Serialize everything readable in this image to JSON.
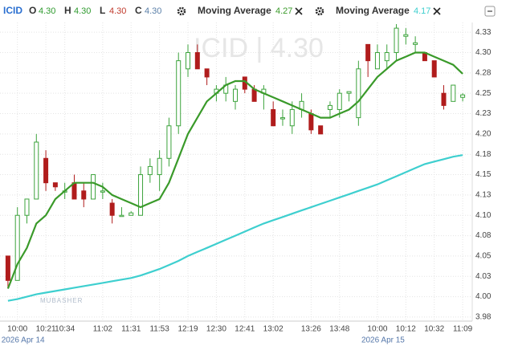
{
  "chart_data": {
    "type": "candlestick",
    "symbol": "ICID",
    "fields": [
      {
        "label": "O",
        "value": "4.30",
        "color": "#2e9a2e"
      },
      {
        "label": "H",
        "value": "4.30",
        "color": "#2e9a2e"
      },
      {
        "label": "L",
        "value": "4.30",
        "color": "#c0392b"
      },
      {
        "label": "C",
        "value": "4.30",
        "color": "#5a7fa8"
      }
    ],
    "watermark": "ICID  |  4.30",
    "logo": "MUBASHER",
    "categories": [
      null,
      "10:00",
      null,
      null,
      "10:21",
      null,
      "10:34",
      null,
      null,
      null,
      "11:02",
      null,
      null,
      "11:31",
      null,
      null,
      "11:53",
      null,
      null,
      "12:19",
      null,
      null,
      "12:30",
      null,
      null,
      "12:41",
      null,
      null,
      "13:02",
      null,
      null,
      null,
      "13:26",
      null,
      null,
      "13:48",
      null,
      null,
      null,
      "10:00",
      null,
      null,
      "10:12",
      null,
      null,
      "10:32",
      null,
      null,
      "11:09"
    ],
    "category_groups": [
      null,
      "2026 Apr 14",
      null,
      null,
      null,
      null,
      null,
      null,
      null,
      null,
      null,
      null,
      null,
      null,
      null,
      null,
      null,
      null,
      null,
      null,
      null,
      null,
      null,
      null,
      null,
      null,
      null,
      null,
      null,
      null,
      null,
      null,
      null,
      null,
      null,
      null,
      null,
      null,
      null,
      "2026 Apr 15",
      null,
      null,
      null,
      null,
      null,
      null,
      null,
      null,
      null
    ],
    "open": [
      4.05,
      4.02,
      4.1,
      4.12,
      4.17,
      4.14,
      4.13,
      4.14,
      4.13,
      4.12,
      4.13,
      4.115,
      4.1,
      4.1,
      4.1,
      4.15,
      4.15,
      4.17,
      4.21,
      4.28,
      4.3,
      4.28,
      4.25,
      4.25,
      4.24,
      4.27,
      4.255,
      4.25,
      4.23,
      4.22,
      4.21,
      4.23,
      4.225,
      4.21,
      4.23,
      4.23,
      4.25,
      4.22,
      4.31,
      4.28,
      4.29,
      4.3,
      4.32,
      4.31,
      4.3,
      4.29,
      4.25,
      4.24,
      4.245
    ],
    "high": [
      4.05,
      4.11,
      4.12,
      4.2,
      4.18,
      4.14,
      4.14,
      4.15,
      4.14,
      4.15,
      4.14,
      4.12,
      4.11,
      4.105,
      4.16,
      4.17,
      4.18,
      4.22,
      4.3,
      4.31,
      4.31,
      4.28,
      4.26,
      4.27,
      4.26,
      4.27,
      4.26,
      4.26,
      4.24,
      4.23,
      4.24,
      4.25,
      4.23,
      4.21,
      4.24,
      4.255,
      4.25,
      4.29,
      4.31,
      4.31,
      4.31,
      4.335,
      4.33,
      4.32,
      4.3,
      4.29,
      4.26,
      4.26,
      4.25
    ],
    "low": [
      4.01,
      4.02,
      4.09,
      4.12,
      4.13,
      4.13,
      4.12,
      4.12,
      4.11,
      4.12,
      4.12,
      4.09,
      4.1,
      4.1,
      4.1,
      4.14,
      4.13,
      4.16,
      4.2,
      4.27,
      4.28,
      4.26,
      4.24,
      4.24,
      4.23,
      4.25,
      4.24,
      4.23,
      4.21,
      4.21,
      4.2,
      4.22,
      4.2,
      4.2,
      4.22,
      4.22,
      4.24,
      4.21,
      4.27,
      4.28,
      4.28,
      4.29,
      4.31,
      4.3,
      4.29,
      4.27,
      4.23,
      4.24,
      4.24
    ],
    "close": [
      4.02,
      4.1,
      4.12,
      4.19,
      4.14,
      4.135,
      4.13,
      4.12,
      4.12,
      4.15,
      4.13,
      4.1,
      4.1,
      4.103,
      4.15,
      4.16,
      4.17,
      4.21,
      4.29,
      4.3,
      4.28,
      4.27,
      4.255,
      4.26,
      4.255,
      4.255,
      4.24,
      4.255,
      4.21,
      4.22,
      4.23,
      4.24,
      4.205,
      4.2,
      4.235,
      4.25,
      4.252,
      4.28,
      4.29,
      4.3,
      4.3,
      4.33,
      4.322,
      4.312,
      4.29,
      4.27,
      4.235,
      4.26,
      4.248
    ],
    "up_color": "#3ca33c",
    "down_color": "#b01c1c",
    "overlays": [
      {
        "name": "Moving Average",
        "value_label": "4.27",
        "color": "#3a9a2a",
        "values": [
          4.01,
          4.04,
          4.06,
          4.09,
          4.1,
          4.12,
          4.13,
          4.14,
          4.14,
          4.14,
          4.135,
          4.125,
          4.12,
          4.115,
          4.11,
          4.115,
          4.12,
          4.14,
          4.17,
          4.2,
          4.22,
          4.24,
          4.25,
          4.26,
          4.265,
          4.265,
          4.255,
          4.25,
          4.245,
          4.24,
          4.235,
          4.23,
          4.225,
          4.22,
          4.22,
          4.225,
          4.23,
          4.24,
          4.255,
          4.27,
          4.28,
          4.29,
          4.295,
          4.3,
          4.3,
          4.295,
          4.29,
          4.285,
          4.274
        ]
      },
      {
        "name": "Moving Average",
        "value_label": "4.17",
        "color": "#3ecfcf",
        "values": [
          3.995,
          3.997,
          4.0,
          4.003,
          4.005,
          4.007,
          4.009,
          4.011,
          4.013,
          4.015,
          4.017,
          4.019,
          4.021,
          4.023,
          4.026,
          4.03,
          4.034,
          4.039,
          4.044,
          4.05,
          4.055,
          4.06,
          4.065,
          4.07,
          4.075,
          4.08,
          4.085,
          4.09,
          4.094,
          4.098,
          4.102,
          4.106,
          4.11,
          4.114,
          4.118,
          4.122,
          4.126,
          4.13,
          4.134,
          4.138,
          4.143,
          4.148,
          4.153,
          4.158,
          4.163,
          4.166,
          4.169,
          4.172,
          4.174
        ]
      }
    ],
    "ylim": [
      3.97,
      4.337
    ],
    "yticks": [
      {
        "value": 4.325,
        "label": "4.33"
      },
      {
        "value": 4.3,
        "label": "4.30"
      },
      {
        "value": 4.275,
        "label": "4.28"
      },
      {
        "value": 4.25,
        "label": "4.25"
      },
      {
        "value": 4.225,
        "label": "4.23"
      },
      {
        "value": 4.2,
        "label": "4.20"
      },
      {
        "value": 4.175,
        "label": "4.18"
      },
      {
        "value": 4.15,
        "label": "4.15"
      },
      {
        "value": 4.125,
        "label": "4.13"
      },
      {
        "value": 4.1,
        "label": "4.10"
      },
      {
        "value": 4.075,
        "label": "4.08"
      },
      {
        "value": 4.05,
        "label": "4.05"
      },
      {
        "value": 4.025,
        "label": "4.03"
      },
      {
        "value": 4.0,
        "label": "4.00"
      },
      {
        "value": 3.975,
        "label": "3.98"
      }
    ],
    "grid": true
  }
}
